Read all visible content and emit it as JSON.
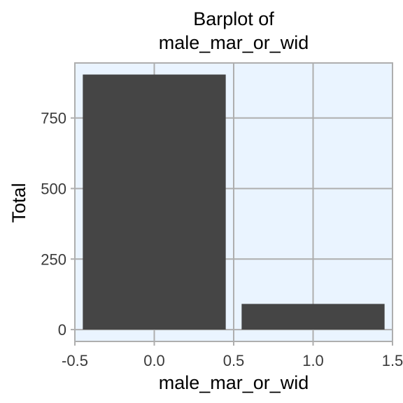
{
  "chart_data": {
    "type": "bar",
    "title_lines": [
      "Barplot of",
      "male_mar_or_wid"
    ],
    "xlabel": "male_mar_or_wid",
    "ylabel": "Total",
    "x": [
      0,
      1
    ],
    "values": [
      904,
      91
    ],
    "bar_width": 0.9,
    "xlim": [
      -0.5,
      1.5
    ],
    "ylim": [
      -42,
      945
    ],
    "xticks": [
      -0.5,
      0.0,
      0.5,
      1.0,
      1.5
    ],
    "xtick_labels": [
      "-0.5",
      "0.0",
      "0.5",
      "1.0",
      "1.5"
    ],
    "yticks": [
      0,
      250,
      500,
      750
    ],
    "ytick_labels": [
      "0",
      "250",
      "500",
      "750"
    ],
    "grid": true,
    "legend": "none",
    "colors": {
      "panel_background": "#eaf4ff",
      "grid_line": "#aeaeae",
      "bar_fill": "#454545",
      "border": "#aeaeae",
      "tick_text": "#3a3a3a",
      "text": "#000000"
    }
  }
}
